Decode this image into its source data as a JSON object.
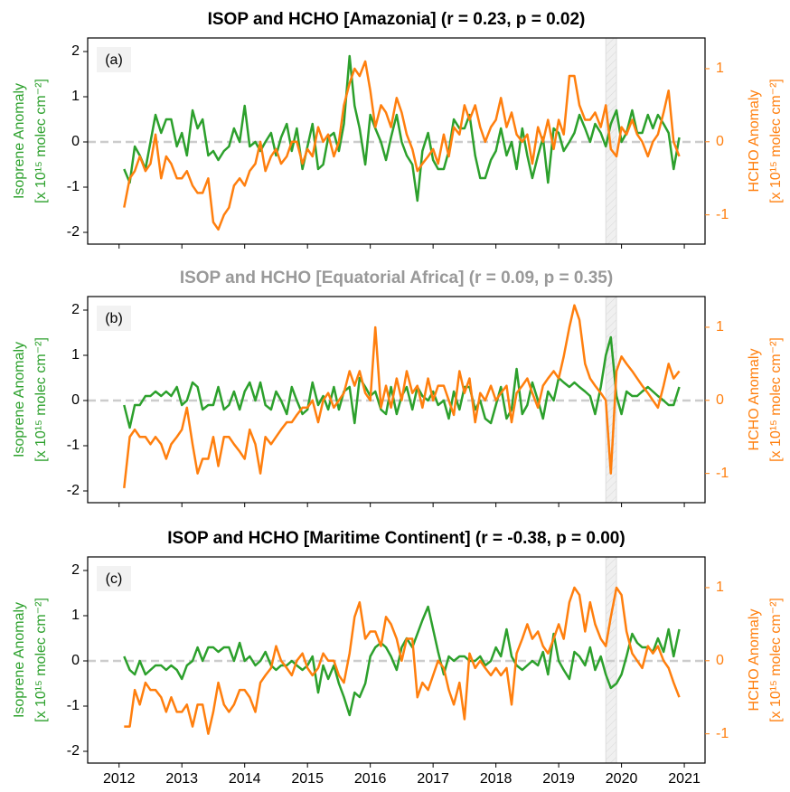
{
  "chart_data": [
    {
      "type": "line",
      "title": "ISOP and HCHO [Amazonia] (r = 0.23, p =  0.02)",
      "title_color": "#000000",
      "panel_label": "(a)",
      "ylabel": [
        "Isoprene Anomaly",
        "[x 10¹⁵ molec cm⁻²]"
      ],
      "y2label": [
        "HCHO Anomaly",
        "[x 10¹⁵ molec cm⁻²]"
      ],
      "xlim": [
        2011.5,
        2021.33
      ],
      "ylim": [
        -2.26,
        2.3
      ],
      "yticks": [
        -2,
        -1,
        0,
        1,
        2
      ],
      "y2lim": [
        -1.4,
        1.42
      ],
      "y2ticks": [
        -1,
        0,
        1
      ],
      "shade": [
        2019.75,
        2019.92
      ],
      "x": [
        2012.08,
        2012.17,
        2012.25,
        2012.33,
        2012.42,
        2012.5,
        2012.58,
        2012.67,
        2012.75,
        2012.83,
        2012.92,
        2013,
        2013.08,
        2013.17,
        2013.25,
        2013.33,
        2013.42,
        2013.5,
        2013.58,
        2013.67,
        2013.75,
        2013.83,
        2013.92,
        2014,
        2014.08,
        2014.17,
        2014.25,
        2014.33,
        2014.42,
        2014.5,
        2014.58,
        2014.67,
        2014.75,
        2014.83,
        2014.92,
        2015,
        2015.08,
        2015.17,
        2015.25,
        2015.33,
        2015.42,
        2015.5,
        2015.58,
        2015.67,
        2015.75,
        2015.83,
        2015.92,
        2016,
        2016.08,
        2016.17,
        2016.25,
        2016.33,
        2016.42,
        2016.5,
        2016.58,
        2016.67,
        2016.75,
        2016.83,
        2016.92,
        2017,
        2017.08,
        2017.17,
        2017.25,
        2017.33,
        2017.42,
        2017.5,
        2017.58,
        2017.67,
        2017.75,
        2017.83,
        2017.92,
        2018,
        2018.08,
        2018.17,
        2018.25,
        2018.33,
        2018.42,
        2018.5,
        2018.58,
        2018.67,
        2018.75,
        2018.83,
        2018.92,
        2019,
        2019.08,
        2019.17,
        2019.25,
        2019.33,
        2019.42,
        2019.5,
        2019.58,
        2019.67,
        2019.75,
        2019.83,
        2019.92,
        2020,
        2020.08,
        2020.17,
        2020.25,
        2020.33,
        2020.42,
        2020.5,
        2020.58,
        2020.67,
        2020.75,
        2020.83,
        2020.92
      ],
      "series": [
        {
          "color": "#2ca02c",
          "values": [
            -0.6,
            -0.9,
            -0.1,
            -0.3,
            -0.6,
            0.0,
            0.6,
            0.2,
            0.5,
            0.5,
            -0.1,
            0.2,
            -0.3,
            0.7,
            0.3,
            0.5,
            -0.3,
            -0.2,
            -0.4,
            -0.2,
            -0.1,
            0.3,
            0.0,
            0.8,
            -0.1,
            0.0,
            -0.2,
            0.0,
            0.2,
            -0.3,
            0.1,
            0.4,
            -0.2,
            0.3,
            -0.6,
            -0.1,
            0.4,
            -0.6,
            -0.5,
            0.1,
            0.2,
            -0.2,
            0.4,
            1.9,
            0.8,
            0.3,
            -0.5,
            0.6,
            0.3,
            0.0,
            -0.4,
            0.1,
            0.6,
            0.0,
            -0.3,
            -0.5,
            -1.3,
            -0.2,
            0.2,
            -0.4,
            -0.6,
            -0.6,
            -0.2,
            0.5,
            0.3,
            0.3,
            0.6,
            -0.3,
            -0.8,
            -0.8,
            -0.4,
            -0.2,
            0.3,
            -0.3,
            0.0,
            -0.6,
            0.3,
            -0.3,
            -0.8,
            -0.3,
            0.1,
            -0.9,
            0.3,
            0.2,
            -0.2,
            0.0,
            0.2,
            0.6,
            0.3,
            0.0,
            0.4,
            0.2,
            -0.1,
            0.4,
            0.7,
            0.0,
            0.2,
            0.7,
            0.2,
            0.2,
            0.6,
            0.3,
            0.6,
            0.4,
            0.2,
            -0.6,
            0.1
          ]
        },
        {
          "color": "#ff7f0e",
          "axis": "y2",
          "values": [
            -0.9,
            -0.5,
            -0.4,
            -0.2,
            -0.4,
            -0.3,
            0.1,
            -0.5,
            -0.2,
            -0.3,
            -0.5,
            -0.5,
            -0.4,
            -0.6,
            -0.7,
            -0.7,
            -0.5,
            -1.1,
            -1.2,
            -1.0,
            -0.9,
            -0.6,
            -0.5,
            -0.6,
            -0.4,
            -0.3,
            0.0,
            -0.4,
            -0.2,
            -0.1,
            -0.3,
            -0.2,
            0.0,
            0.0,
            -0.3,
            -0.1,
            -0.2,
            0.2,
            0.0,
            0.1,
            -0.2,
            0.0,
            0.5,
            0.8,
            1.0,
            0.9,
            1.1,
            0.7,
            0.2,
            0.5,
            0.4,
            0.2,
            0.6,
            0.4,
            0.1,
            -0.1,
            -0.4,
            -0.3,
            -0.2,
            -0.1,
            -0.3,
            0.1,
            -0.2,
            0.2,
            0.1,
            0.5,
            0.3,
            0.5,
            0.2,
            0.0,
            0.2,
            0.3,
            0.6,
            0.2,
            0.4,
            0.1,
            0.0,
            0.1,
            -0.3,
            0.2,
            0.0,
            0.3,
            -0.1,
            0.3,
            0.1,
            0.9,
            0.9,
            0.5,
            0.3,
            0.3,
            0.4,
            0.2,
            0.5,
            -0.1,
            -0.2,
            0.2,
            0.1,
            0.3,
            0.1,
            0.0,
            -0.2,
            0.0,
            0.1,
            0.4,
            0.7,
            0.0,
            -0.2
          ]
        }
      ]
    },
    {
      "type": "line",
      "title": "ISOP and HCHO [Equatorial Africa] (r = 0.09, p =  0.35)",
      "title_color": "#999999",
      "panel_label": "(b)",
      "ylabel": [
        "Isoprene Anomaly",
        "[x 10¹⁵ molec cm⁻²]"
      ],
      "y2label": [
        "HCHO Anomaly",
        "[x 10¹⁵ molec cm⁻²]"
      ],
      "xlim": [
        2011.5,
        2021.33
      ],
      "ylim": [
        -2.26,
        2.3
      ],
      "yticks": [
        -2,
        -1,
        0,
        1,
        2
      ],
      "y2lim": [
        -1.4,
        1.42
      ],
      "y2ticks": [
        -1,
        0,
        1
      ],
      "shade": [
        2019.75,
        2019.92
      ],
      "x": [
        2012.08,
        2012.17,
        2012.25,
        2012.33,
        2012.42,
        2012.5,
        2012.58,
        2012.67,
        2012.75,
        2012.83,
        2012.92,
        2013,
        2013.08,
        2013.17,
        2013.25,
        2013.33,
        2013.42,
        2013.5,
        2013.58,
        2013.67,
        2013.75,
        2013.83,
        2013.92,
        2014,
        2014.08,
        2014.17,
        2014.25,
        2014.33,
        2014.42,
        2014.5,
        2014.58,
        2014.67,
        2014.75,
        2014.83,
        2014.92,
        2015,
        2015.08,
        2015.17,
        2015.25,
        2015.33,
        2015.42,
        2015.5,
        2015.58,
        2015.67,
        2015.75,
        2015.83,
        2015.92,
        2016,
        2016.08,
        2016.17,
        2016.25,
        2016.33,
        2016.42,
        2016.5,
        2016.58,
        2016.67,
        2016.75,
        2016.83,
        2016.92,
        2017,
        2017.08,
        2017.17,
        2017.25,
        2017.33,
        2017.42,
        2017.5,
        2017.58,
        2017.67,
        2017.75,
        2017.83,
        2017.92,
        2018,
        2018.08,
        2018.17,
        2018.25,
        2018.33,
        2018.42,
        2018.5,
        2018.58,
        2018.67,
        2018.75,
        2018.83,
        2018.92,
        2019,
        2019.08,
        2019.17,
        2019.25,
        2019.33,
        2019.42,
        2019.5,
        2019.58,
        2019.67,
        2019.75,
        2019.83,
        2019.92,
        2020,
        2020.08,
        2020.17,
        2020.25,
        2020.33,
        2020.42,
        2020.5,
        2020.58,
        2020.67,
        2020.75,
        2020.83,
        2020.92
      ],
      "series": [
        {
          "color": "#2ca02c",
          "values": [
            -0.1,
            -0.6,
            -0.1,
            -0.1,
            0.1,
            0.1,
            0.2,
            0.1,
            0.2,
            0.1,
            0.3,
            -0.1,
            0.0,
            0.4,
            0.3,
            -0.2,
            -0.1,
            -0.1,
            0.3,
            -0.2,
            -0.1,
            0.2,
            -0.2,
            0.2,
            0.4,
            0.0,
            0.4,
            -0.1,
            -0.2,
            0.2,
            0.0,
            -0.3,
            0.3,
            0.0,
            -0.3,
            -0.2,
            0.4,
            -0.1,
            0.1,
            -0.2,
            0.3,
            -0.2,
            0.2,
            0.3,
            -0.5,
            0.5,
            0.3,
            0.1,
            0.2,
            -0.2,
            -0.3,
            0.3,
            -0.3,
            0.1,
            0.3,
            -0.2,
            0.3,
            0.1,
            0.0,
            0.2,
            -0.1,
            0.0,
            -0.4,
            0.2,
            -0.2,
            0.3,
            0.3,
            -0.2,
            0.0,
            -0.4,
            -0.5,
            -0.1,
            0.3,
            -0.4,
            -0.2,
            0.7,
            -0.3,
            -0.1,
            0.4,
            0.0,
            -0.4,
            0.2,
            0.0,
            0.5,
            0.4,
            0.3,
            0.4,
            0.3,
            0.2,
            0.1,
            -0.3,
            0.3,
            1.0,
            1.4,
            0.1,
            -0.3,
            0.2,
            0.1,
            0.1,
            0.2,
            0.3,
            0.2,
            0.1,
            0.0,
            -0.1,
            -0.1,
            0.3
          ]
        },
        {
          "color": "#ff7f0e",
          "axis": "y2",
          "values": [
            -1.2,
            -0.5,
            -0.4,
            -0.5,
            -0.5,
            -0.6,
            -0.5,
            -0.6,
            -0.8,
            -0.6,
            -0.5,
            -0.4,
            -0.1,
            -0.6,
            -1.0,
            -0.8,
            -0.8,
            -0.5,
            -0.9,
            -0.5,
            -0.5,
            -0.6,
            -0.7,
            -0.8,
            -0.4,
            -0.6,
            -1.0,
            -0.5,
            -0.6,
            -0.5,
            -0.4,
            -0.3,
            -0.3,
            -0.2,
            -0.1,
            -0.1,
            0.0,
            -0.3,
            0.0,
            0.1,
            -0.1,
            0.0,
            0.1,
            0.4,
            0.2,
            0.4,
            0.1,
            0.0,
            1.0,
            -0.1,
            0.2,
            -0.1,
            0.3,
            0.0,
            0.4,
            0.1,
            0.2,
            -0.1,
            0.3,
            0.0,
            0.2,
            0.2,
            0.0,
            -0.2,
            0.4,
            0.1,
            0.3,
            -0.3,
            0.1,
            0.0,
            0.2,
            0.0,
            0.1,
            0.2,
            -0.3,
            0.1,
            0.2,
            0.3,
            0.1,
            -0.1,
            0.2,
            0.3,
            0.4,
            0.3,
            0.6,
            1.0,
            1.3,
            1.1,
            0.5,
            0.3,
            0.2,
            0.1,
            0.0,
            -1.0,
            0.4,
            0.6,
            0.5,
            0.4,
            0.3,
            0.2,
            0.1,
            0.0,
            -0.1,
            0.2,
            0.5,
            0.3,
            0.4
          ]
        }
      ]
    },
    {
      "type": "line",
      "title": "ISOP and HCHO [Maritime Continent] (r = -0.38, p =  0.00)",
      "title_color": "#000000",
      "panel_label": "(c)",
      "ylabel": [
        "Isoprene Anomaly",
        "[x 10¹⁵ molec cm⁻²]"
      ],
      "y2label": [
        "HCHO Anomaly",
        "[x 10¹⁵ molec cm⁻²]"
      ],
      "xlim": [
        2011.5,
        2021.33
      ],
      "xticks": [
        2012,
        2013,
        2014,
        2015,
        2016,
        2017,
        2018,
        2019,
        2020,
        2021
      ],
      "ylim": [
        -2.26,
        2.3
      ],
      "yticks": [
        -2,
        -1,
        0,
        1,
        2
      ],
      "y2lim": [
        -1.4,
        1.42
      ],
      "y2ticks": [
        -1,
        0,
        1
      ],
      "shade": [
        2019.75,
        2019.92
      ],
      "x": [
        2012.08,
        2012.17,
        2012.25,
        2012.33,
        2012.42,
        2012.5,
        2012.58,
        2012.67,
        2012.75,
        2012.83,
        2012.92,
        2013,
        2013.08,
        2013.17,
        2013.25,
        2013.33,
        2013.42,
        2013.5,
        2013.58,
        2013.67,
        2013.75,
        2013.83,
        2013.92,
        2014,
        2014.08,
        2014.17,
        2014.25,
        2014.33,
        2014.42,
        2014.5,
        2014.58,
        2014.67,
        2014.75,
        2014.83,
        2014.92,
        2015,
        2015.08,
        2015.17,
        2015.25,
        2015.33,
        2015.42,
        2015.5,
        2015.58,
        2015.67,
        2015.75,
        2015.83,
        2015.92,
        2016,
        2016.08,
        2016.17,
        2016.25,
        2016.33,
        2016.42,
        2016.5,
        2016.58,
        2016.67,
        2016.75,
        2016.83,
        2016.92,
        2017,
        2017.08,
        2017.17,
        2017.25,
        2017.33,
        2017.42,
        2017.5,
        2017.58,
        2017.67,
        2017.75,
        2017.83,
        2017.92,
        2018,
        2018.08,
        2018.17,
        2018.25,
        2018.33,
        2018.42,
        2018.5,
        2018.58,
        2018.67,
        2018.75,
        2018.83,
        2018.92,
        2019,
        2019.08,
        2019.17,
        2019.25,
        2019.33,
        2019.42,
        2019.5,
        2019.58,
        2019.67,
        2019.75,
        2019.83,
        2019.92,
        2020,
        2020.08,
        2020.17,
        2020.25,
        2020.33,
        2020.42,
        2020.5,
        2020.58,
        2020.67,
        2020.75,
        2020.83,
        2020.92
      ],
      "series": [
        {
          "color": "#2ca02c",
          "values": [
            0.1,
            -0.2,
            -0.3,
            0.0,
            -0.3,
            -0.2,
            -0.1,
            -0.1,
            -0.2,
            -0.1,
            -0.2,
            -0.4,
            -0.1,
            0.0,
            0.3,
            0.0,
            0.3,
            0.3,
            0.2,
            0.3,
            0.3,
            0.0,
            0.4,
            0.0,
            0.1,
            -0.1,
            0.0,
            0.2,
            -0.1,
            -0.2,
            -0.1,
            -0.1,
            0.0,
            -0.1,
            -0.2,
            -0.1,
            0.1,
            -0.7,
            -0.1,
            -0.4,
            -0.1,
            -0.5,
            -0.8,
            -1.2,
            -0.7,
            -0.8,
            -0.5,
            0.1,
            0.3,
            0.4,
            0.3,
            0.1,
            -0.2,
            0.3,
            0.5,
            0.3,
            0.6,
            0.9,
            1.2,
            0.7,
            0.2,
            -0.3,
            0.1,
            0.0,
            0.1,
            0.1,
            0.0,
            0.0,
            0.1,
            -0.1,
            0.0,
            0.3,
            0.1,
            0.7,
            0.1,
            -0.1,
            -0.2,
            -0.1,
            0.0,
            -0.1,
            0.2,
            -0.3,
            0.6,
            0.0,
            -0.2,
            -0.4,
            0.2,
            0.1,
            -0.1,
            0.3,
            -0.2,
            0.1,
            -0.3,
            -0.6,
            -0.5,
            -0.3,
            0.1,
            0.6,
            0.4,
            0.3,
            0.3,
            0.2,
            0.5,
            0.2,
            0.7,
            0.1,
            0.7
          ]
        },
        {
          "color": "#ff7f0e",
          "axis": "y2",
          "values": [
            -0.9,
            -0.9,
            -0.4,
            -0.6,
            -0.3,
            -0.4,
            -0.4,
            -0.5,
            -0.7,
            -0.5,
            -0.7,
            -0.7,
            -0.6,
            -0.9,
            -0.6,
            -0.6,
            -1.0,
            -0.7,
            -0.3,
            -0.6,
            -0.7,
            -0.6,
            -0.4,
            -0.4,
            -0.5,
            -0.7,
            -0.3,
            -0.2,
            -0.1,
            0.2,
            0.0,
            -0.1,
            -0.2,
            0.0,
            0.1,
            -0.1,
            -0.2,
            -0.1,
            0.1,
            0.0,
            0.0,
            -0.2,
            -0.3,
            0.1,
            0.6,
            0.8,
            0.3,
            0.4,
            0.4,
            0.2,
            0.6,
            0.5,
            0.3,
            0.0,
            0.3,
            0.3,
            -0.5,
            -0.3,
            -0.4,
            -0.2,
            0.0,
            -0.1,
            -0.4,
            -0.6,
            -0.3,
            -0.8,
            0.1,
            -0.1,
            0.0,
            -0.1,
            -0.2,
            -0.1,
            -0.2,
            -0.1,
            -0.6,
            0.1,
            0.3,
            0.5,
            0.3,
            0.4,
            0.2,
            0.1,
            0.3,
            0.5,
            0.3,
            0.8,
            1.0,
            0.9,
            0.4,
            0.8,
            0.5,
            0.3,
            0.2,
            0.6,
            1.0,
            0.9,
            0.4,
            0.1,
            0.0,
            -0.1,
            0.2,
            0.1,
            0.2,
            0.0,
            -0.1,
            -0.3,
            -0.5
          ]
        }
      ]
    }
  ]
}
